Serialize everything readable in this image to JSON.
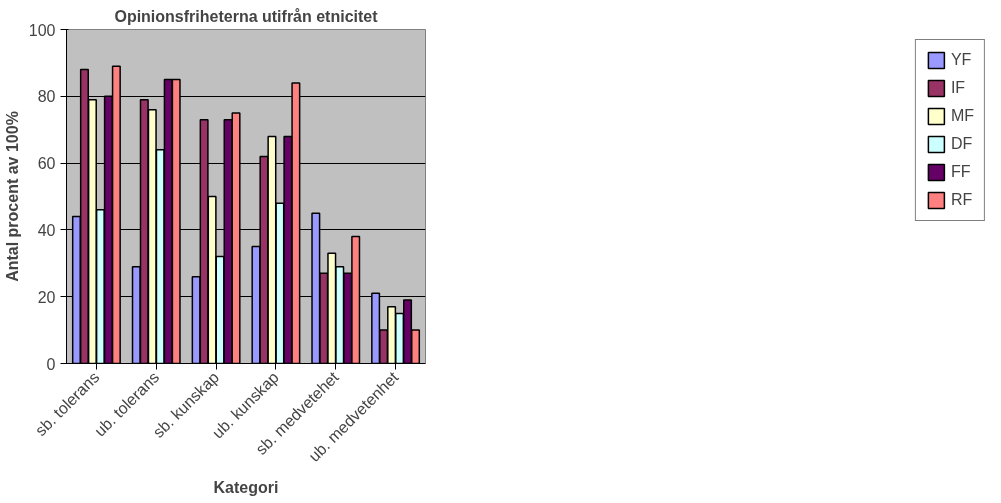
{
  "chart_data": {
    "type": "bar",
    "title": "Opinionsfriheterna utifrån etnicitet",
    "xlabel": "Kategori",
    "ylabel": "Antal procent av 100%",
    "categories": [
      "sb. tolerans",
      "ub. tolerans",
      "sb. kunskap",
      "ub. kunskap",
      "sb. medvetehet",
      "ub. medvetenhet"
    ],
    "series": [
      {
        "name": "YF",
        "color": "#9999ff",
        "values": [
          44,
          29,
          26,
          35,
          45,
          21
        ]
      },
      {
        "name": "IF",
        "color": "#993366",
        "values": [
          88,
          79,
          73,
          62,
          27,
          10
        ]
      },
      {
        "name": "MF",
        "color": "#ffffcc",
        "values": [
          79,
          76,
          50,
          68,
          33,
          17
        ]
      },
      {
        "name": "DF",
        "color": "#ccffff",
        "values": [
          46,
          64,
          32,
          48,
          29,
          15
        ]
      },
      {
        "name": "FF",
        "color": "#660066",
        "values": [
          80,
          85,
          73,
          68,
          27,
          19
        ]
      },
      {
        "name": "RF",
        "color": "#ff8080",
        "values": [
          89,
          85,
          75,
          84,
          38,
          10
        ]
      }
    ],
    "ylim": [
      0,
      100
    ],
    "yticks": [
      0,
      20,
      40,
      60,
      80,
      100
    ],
    "grid": "y",
    "legend": "right"
  }
}
